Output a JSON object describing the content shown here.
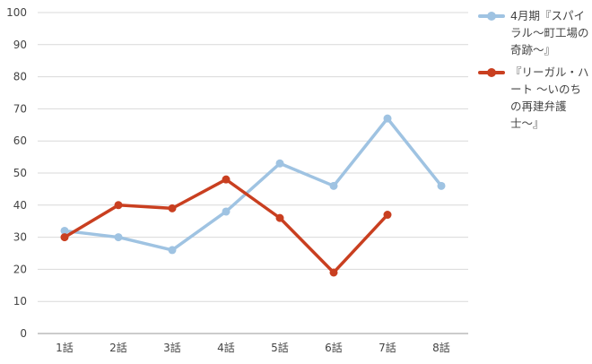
{
  "chart_data": {
    "type": "line",
    "categories": [
      "1話",
      "2話",
      "3話",
      "4話",
      "5話",
      "6話",
      "7話",
      "8話"
    ],
    "ylim": [
      0,
      100
    ],
    "yticks": [
      0,
      10,
      20,
      30,
      40,
      50,
      60,
      70,
      80,
      90,
      100
    ],
    "grid": true,
    "legend": "right",
    "series": [
      {
        "name": "4月期『スパイラル〜町工場の奇跡〜』",
        "color": "#9fc3e2",
        "values": [
          32,
          30,
          26,
          38,
          53,
          46,
          67,
          46
        ]
      },
      {
        "name": "『リーガル・ハート 〜いのちの再建弁護士〜』",
        "color": "#c93f20",
        "values": [
          30,
          40,
          39,
          48,
          36,
          19,
          37,
          null
        ]
      }
    ]
  }
}
